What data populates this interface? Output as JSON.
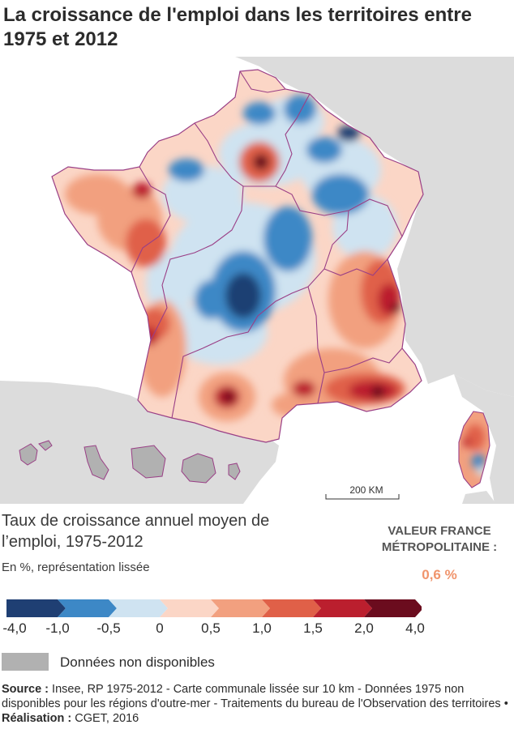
{
  "title": "La croissance de l'emploi dans les territoires entre 1975 et 2012",
  "map": {
    "scale_bar_label": "200 KM",
    "colors": {
      "sea": "#ffffff",
      "land_outside": "#dcdcdc",
      "no_data": "#b1b1b1",
      "region_border": "#9a3f86"
    }
  },
  "legend": {
    "title": "Taux de croissance annuel moyen de l’emploi, 1975-2012",
    "subtitle": "En %, représentation lissée",
    "classes": [
      {
        "from": -4.0,
        "to": -1.0,
        "color": "#1f3f73"
      },
      {
        "from": -1.0,
        "to": -0.5,
        "color": "#3d88c6"
      },
      {
        "from": -0.5,
        "to": 0,
        "color": "#cfe3f1"
      },
      {
        "from": 0,
        "to": 0.5,
        "color": "#fbd6c6"
      },
      {
        "from": 0.5,
        "to": 1.0,
        "color": "#f2a07f"
      },
      {
        "from": 1.0,
        "to": 1.5,
        "color": "#e06048"
      },
      {
        "from": 1.5,
        "to": 2.0,
        "color": "#bb1f2e"
      },
      {
        "from": 2.0,
        "to": 4.0,
        "color": "#6b0c1e"
      }
    ],
    "ticks": [
      "-4,0",
      "-1,0",
      "-0,5",
      "0",
      "0,5",
      "1,0",
      "1,5",
      "2,0",
      "4,0"
    ],
    "no_data_label": "Données non disponibles"
  },
  "valeur_france": {
    "label": "VALEUR FRANCE MÉTROPOLITAINE :",
    "value": "0,6 %"
  },
  "source": {
    "source_label": "Source :",
    "source_text": "Insee, RP 1975-2012 - Carte communale lissée sur 10 km - Données 1975 non disponibles pour les régions d'outre-mer - Traitements du bureau de l'Observation des territoires",
    "realisation_label": "Réalisation :",
    "realisation_text": "CGET, 2016"
  }
}
